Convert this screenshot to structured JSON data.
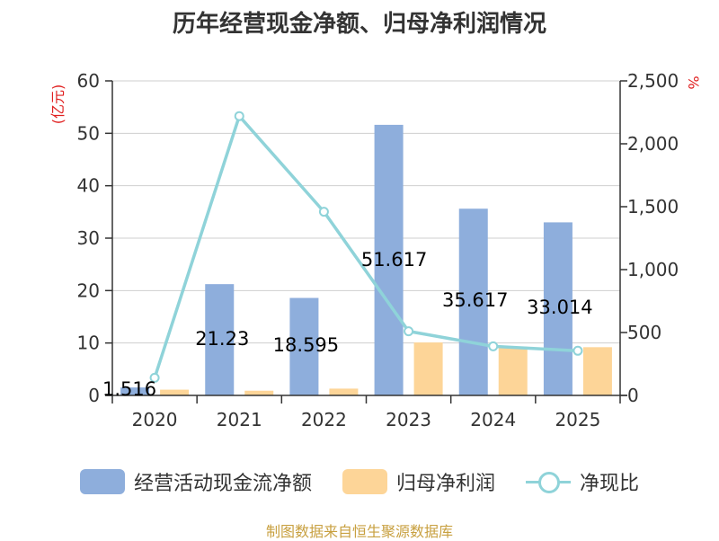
{
  "title": "历年经营现金净额、归母净利润情况",
  "source_note": "制图数据来自恒生聚源数据库",
  "chart_data": {
    "type": "bar",
    "categories": [
      "2020",
      "2021",
      "2022",
      "2023",
      "2024",
      "2025"
    ],
    "series": [
      {
        "name": "经营活动现金流净额",
        "type": "bar",
        "axis": "left",
        "color": "#8eaedc",
        "values": [
          1.516,
          21.23,
          18.595,
          51.617,
          35.617,
          33.014
        ],
        "labels": [
          "1.516",
          "21.23",
          "18.595",
          "51.617",
          "35.617",
          "33.014"
        ]
      },
      {
        "name": "归母净利润",
        "type": "bar",
        "axis": "left",
        "color": "#fdd598",
        "values": [
          1.1,
          0.9,
          1.3,
          10.1,
          9.3,
          9.2
        ]
      },
      {
        "name": "净现比",
        "type": "line",
        "axis": "right",
        "color": "#8fd3d9",
        "values": [
          140,
          2220,
          1460,
          510,
          390,
          355
        ]
      }
    ],
    "y_left": {
      "unit": "(亿元)",
      "min": 0,
      "max": 60,
      "ticks": [
        0,
        10,
        20,
        30,
        40,
        50,
        60
      ],
      "tick_labels": [
        "0",
        "10",
        "20",
        "30",
        "40",
        "50",
        "60"
      ]
    },
    "y_right": {
      "unit": "%",
      "min": 0,
      "max": 2500,
      "ticks": [
        0,
        500,
        1000,
        1500,
        2000,
        2500
      ],
      "tick_labels": [
        "0",
        "500",
        "1,000",
        "1,500",
        "2,000",
        "2,500"
      ]
    },
    "grid": true,
    "legend_position": "bottom"
  }
}
